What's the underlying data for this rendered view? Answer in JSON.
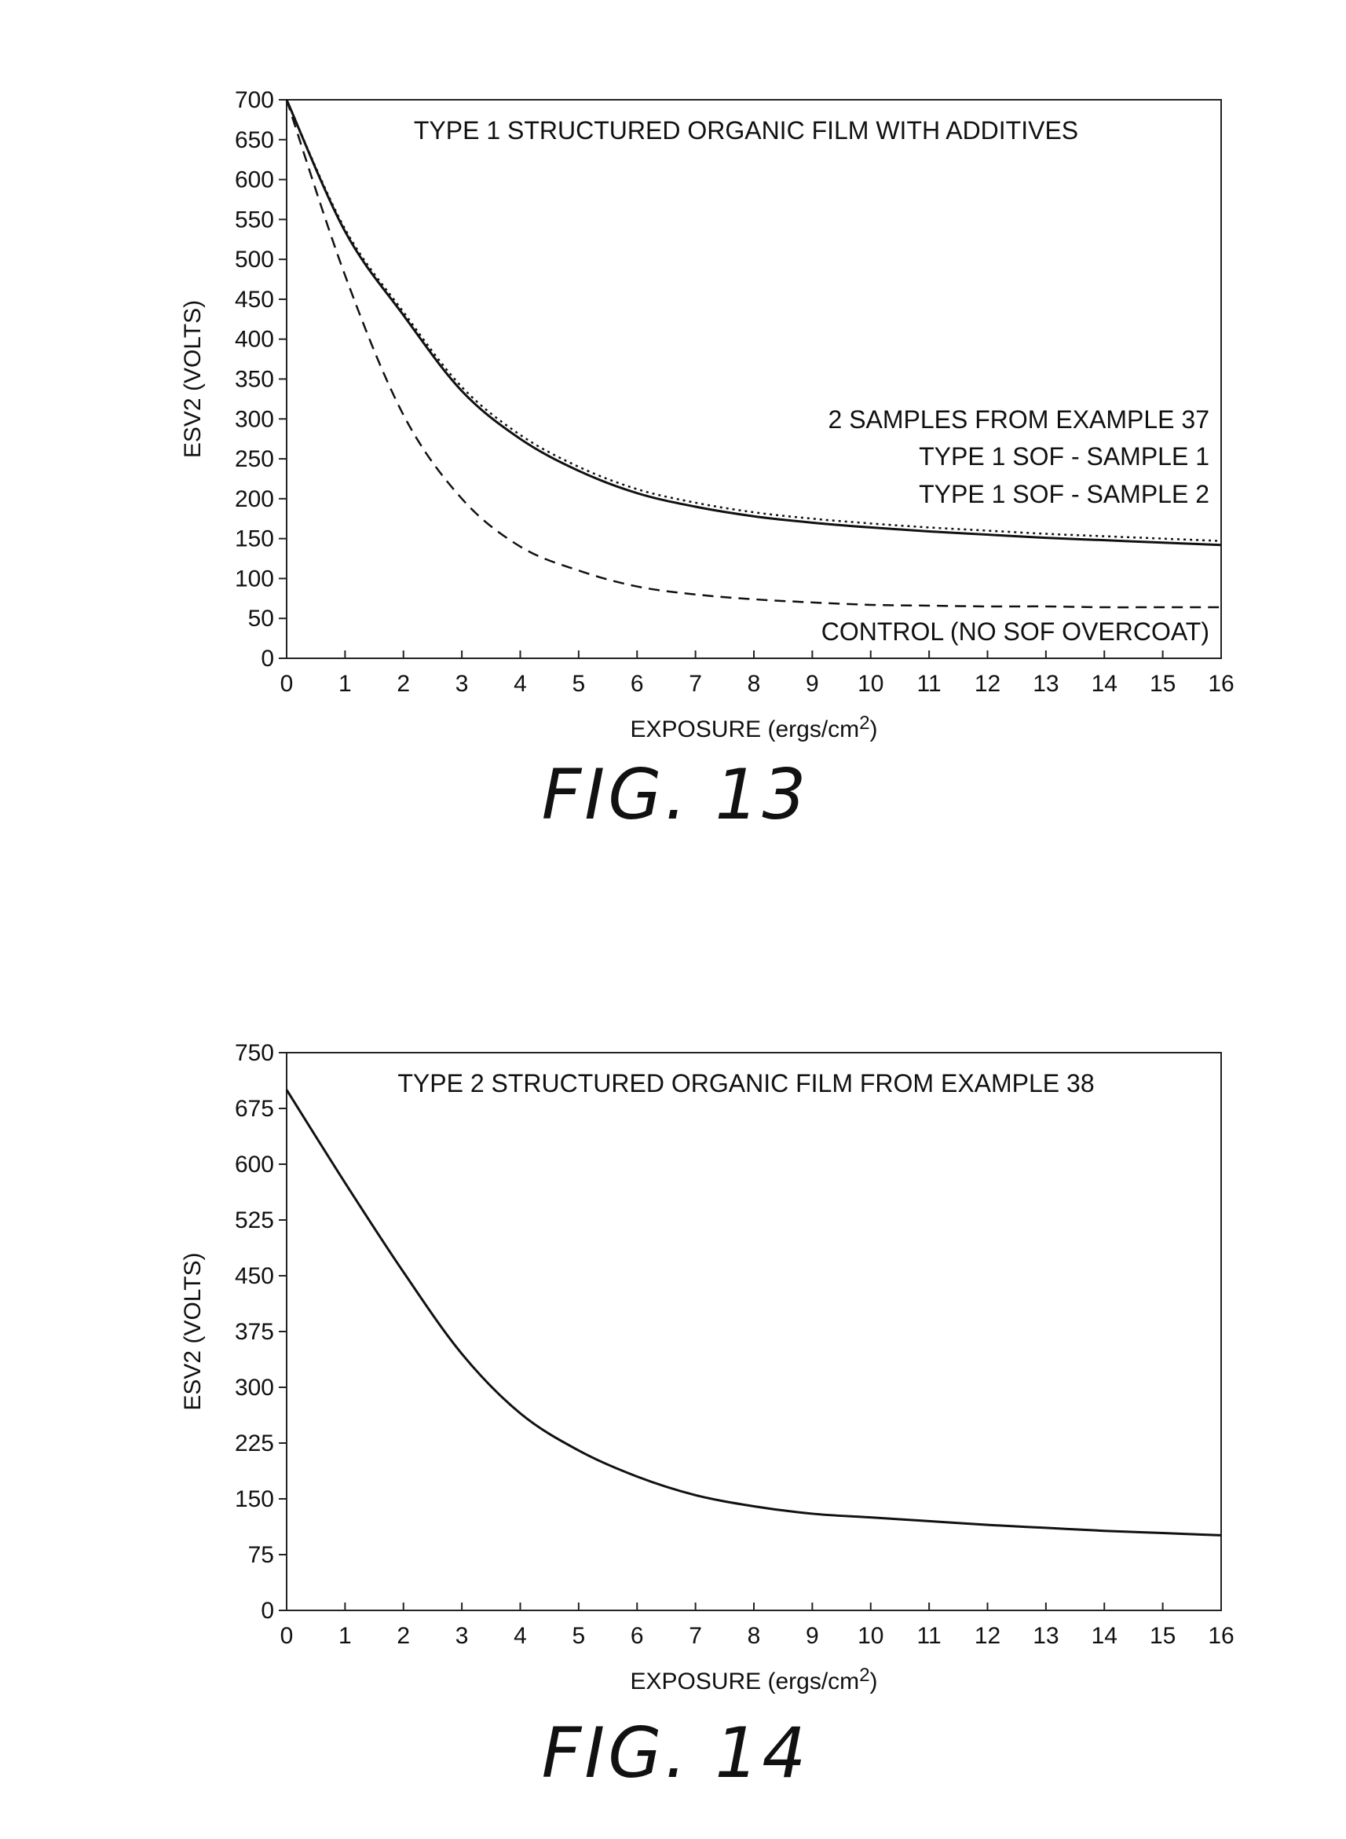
{
  "chart_data": [
    {
      "type": "line",
      "title": "TYPE 1 STRUCTURED ORGANIC FILM WITH ADDITIVES",
      "xlabel": "EXPOSURE (ergs/cm2)",
      "ylabel": "ESV2 (VOLTS)",
      "xlim": [
        0,
        16
      ],
      "ylim": [
        0,
        700
      ],
      "xticks": [
        0,
        1,
        2,
        3,
        4,
        5,
        6,
        7,
        8,
        9,
        10,
        11,
        12,
        13,
        14,
        15,
        16
      ],
      "yticks": [
        0,
        50,
        100,
        150,
        200,
        250,
        300,
        350,
        400,
        450,
        500,
        550,
        600,
        650,
        700
      ],
      "grid": false,
      "legend_title": "2 SAMPLES FROM EXAMPLE 37",
      "legend_position": "right",
      "x": [
        0,
        1,
        2,
        3,
        4,
        5,
        6,
        7,
        8,
        9,
        10,
        11,
        12,
        13,
        14,
        15,
        16
      ],
      "series": [
        {
          "name": "TYPE 1 SOF - SAMPLE 1",
          "style": "solid",
          "values": [
            700,
            535,
            430,
            335,
            275,
            235,
            207,
            190,
            178,
            170,
            164,
            159,
            155,
            151,
            148,
            145,
            142
          ]
        },
        {
          "name": "TYPE 1 SOF - SAMPLE 2",
          "style": "dotted",
          "values": [
            700,
            538,
            434,
            340,
            280,
            240,
            212,
            195,
            183,
            175,
            169,
            164,
            160,
            156,
            153,
            150,
            147
          ]
        },
        {
          "name": "CONTROL (NO SOF OVERCOAT)",
          "style": "dashed",
          "values": [
            700,
            480,
            305,
            200,
            140,
            110,
            90,
            80,
            74,
            70,
            67,
            66,
            65,
            65,
            64,
            64,
            64
          ]
        }
      ],
      "caption": "FIG. 13"
    },
    {
      "type": "line",
      "title": "TYPE 2 STRUCTURED ORGANIC FILM FROM EXAMPLE 38",
      "xlabel": "EXPOSURE (ergs/cm2)",
      "ylabel": "ESV2 (VOLTS)",
      "xlim": [
        0,
        16
      ],
      "ylim": [
        0,
        750
      ],
      "xticks": [
        0,
        1,
        2,
        3,
        4,
        5,
        6,
        7,
        8,
        9,
        10,
        11,
        12,
        13,
        14,
        15,
        16
      ],
      "yticks": [
        0,
        75,
        150,
        225,
        300,
        375,
        450,
        525,
        600,
        675,
        750
      ],
      "grid": false,
      "x": [
        0,
        1,
        2,
        3,
        4,
        5,
        6,
        7,
        8,
        9,
        10,
        11,
        12,
        13,
        14,
        15,
        16
      ],
      "series": [
        {
          "style": "solid",
          "values": [
            700,
            575,
            455,
            345,
            265,
            215,
            180,
            155,
            140,
            130,
            125,
            120,
            115,
            111,
            107,
            104,
            101
          ]
        }
      ],
      "caption": "FIG. 14"
    }
  ]
}
